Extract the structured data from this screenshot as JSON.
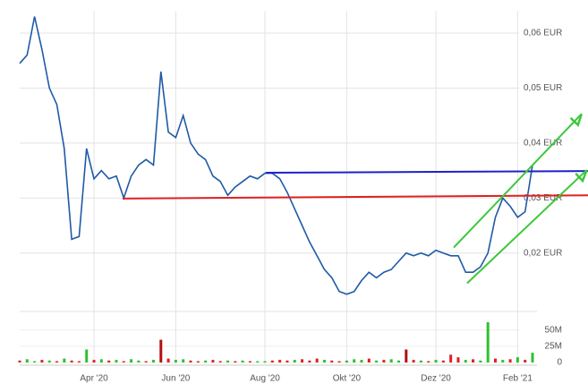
{
  "chart_data": {
    "type": "line",
    "categories": [
      null,
      null,
      null,
      null,
      null,
      null,
      null,
      null,
      null,
      null,
      "Apr '20",
      null,
      null,
      null,
      null,
      null,
      null,
      null,
      null,
      null,
      null,
      "Jun '20",
      null,
      null,
      null,
      null,
      null,
      null,
      null,
      null,
      null,
      null,
      null,
      "Aug '20",
      null,
      null,
      null,
      null,
      null,
      null,
      null,
      null,
      null,
      null,
      "Okt '20",
      null,
      null,
      null,
      null,
      null,
      null,
      null,
      null,
      null,
      null,
      null,
      "Dez '20",
      null,
      null,
      null,
      null,
      null,
      null,
      null,
      null,
      null,
      null,
      "Feb '21",
      null,
      null
    ],
    "series": [
      {
        "color": "#1f5aa6",
        "values": [
          0.0545,
          0.056,
          0.063,
          0.057,
          0.05,
          0.047,
          0.039,
          0.0225,
          0.023,
          0.039,
          0.0335,
          0.035,
          0.0335,
          0.034,
          0.03,
          0.034,
          0.036,
          0.037,
          0.036,
          0.053,
          0.042,
          0.041,
          0.045,
          0.04,
          0.038,
          0.037,
          0.034,
          0.033,
          0.0305,
          0.032,
          0.033,
          0.034,
          0.0335,
          0.0345,
          0.0345,
          0.0335,
          0.031,
          0.028,
          0.025,
          0.022,
          0.0195,
          0.017,
          0.0155,
          0.013,
          0.0125,
          0.013,
          0.015,
          0.0165,
          0.0155,
          0.0165,
          0.017,
          0.0185,
          0.02,
          0.0195,
          0.02,
          0.0195,
          0.0205,
          0.02,
          0.0195,
          0.0195,
          0.0165,
          0.0165,
          0.0175,
          0.02,
          0.0265,
          0.03,
          0.0285,
          0.0265,
          0.0275,
          0.036
        ]
      }
    ],
    "ylim": [
      0.011,
      0.064
    ],
    "yticks": [
      {
        "value": 0.06,
        "label": "0,06 EUR"
      },
      {
        "value": 0.05,
        "label": "0,05 EUR"
      },
      {
        "value": 0.04,
        "label": "0,04 EUR"
      },
      {
        "value": 0.03,
        "label": "0,03 EUR"
      },
      {
        "value": 0.02,
        "label": "0,02 EUR"
      }
    ],
    "volume": {
      "values": [
        3,
        5,
        2,
        4,
        3,
        2,
        6,
        3,
        2,
        20,
        4,
        5,
        3,
        4,
        2,
        5,
        3,
        2,
        4,
        35,
        6,
        4,
        5,
        3,
        2,
        3,
        4,
        2,
        3,
        2,
        3,
        2,
        2,
        2,
        3,
        4,
        3,
        4,
        5,
        3,
        6,
        4,
        3,
        2,
        3,
        5,
        4,
        6,
        3,
        4,
        5,
        3,
        20,
        4,
        3,
        2,
        4,
        3,
        12,
        8,
        4,
        5,
        3,
        62,
        6,
        4,
        5,
        8,
        4,
        15
      ],
      "colors": [
        "#e02020",
        "#2ec02e",
        "#2ec02e",
        "#e02020",
        "#2ec02e",
        "#e02020",
        "#2ec02e",
        "#e02020",
        "#e02020",
        "#2ec02e",
        "#e02020",
        "#2ec02e",
        "#e02020",
        "#2ec02e",
        "#e02020",
        "#2ec02e",
        "#2ec02e",
        "#e02020",
        "#2ec02e",
        "#b01010",
        "#e02020",
        "#2ec02e",
        "#2ec02e",
        "#e02020",
        "#e02020",
        "#2ec02e",
        "#e02020",
        "#e02020",
        "#2ec02e",
        "#e02020",
        "#2ec02e",
        "#e02020",
        "#2ec02e",
        "#2ec02e",
        "#e02020",
        "#e02020",
        "#e02020",
        "#2ec02e",
        "#e02020",
        "#e02020",
        "#e02020",
        "#2ec02e",
        "#e02020",
        "#e02020",
        "#2ec02e",
        "#2ec02e",
        "#2ec02e",
        "#e02020",
        "#2ec02e",
        "#e02020",
        "#2ec02e",
        "#2ec02e",
        "#b01010",
        "#e02020",
        "#2ec02e",
        "#e02020",
        "#2ec02e",
        "#e02020",
        "#e02020",
        "#e02020",
        "#2ec02e",
        "#e02020",
        "#2ec02e",
        "#2ec02e",
        "#e02020",
        "#2ec02e",
        "#e02020",
        "#2ec02e",
        "#e02020",
        "#2ec02e"
      ],
      "ylim": [
        0,
        80
      ],
      "yticks": [
        {
          "value": 50,
          "label": "50M"
        },
        {
          "value": 25,
          "label": "25M"
        },
        0
      ]
    },
    "annotations": [
      {
        "color": "#2020c8",
        "x": [
          33.1,
          76.5
        ],
        "y": [
          0.0346,
          0.0349
        ]
      },
      {
        "color": "#e02020",
        "x": [
          13.85,
          76.5
        ],
        "y": [
          0.0299,
          0.0305
        ]
      },
      {
        "color": "#3cc83c",
        "x": [
          58.4,
          75.6
        ],
        "y": [
          0.021,
          0.0453
        ],
        "arrow": true
      },
      {
        "color": "#3cc83c",
        "x": [
          60.2,
          76.3
        ],
        "y": [
          0.0145,
          0.0351
        ],
        "arrow": true
      }
    ]
  }
}
